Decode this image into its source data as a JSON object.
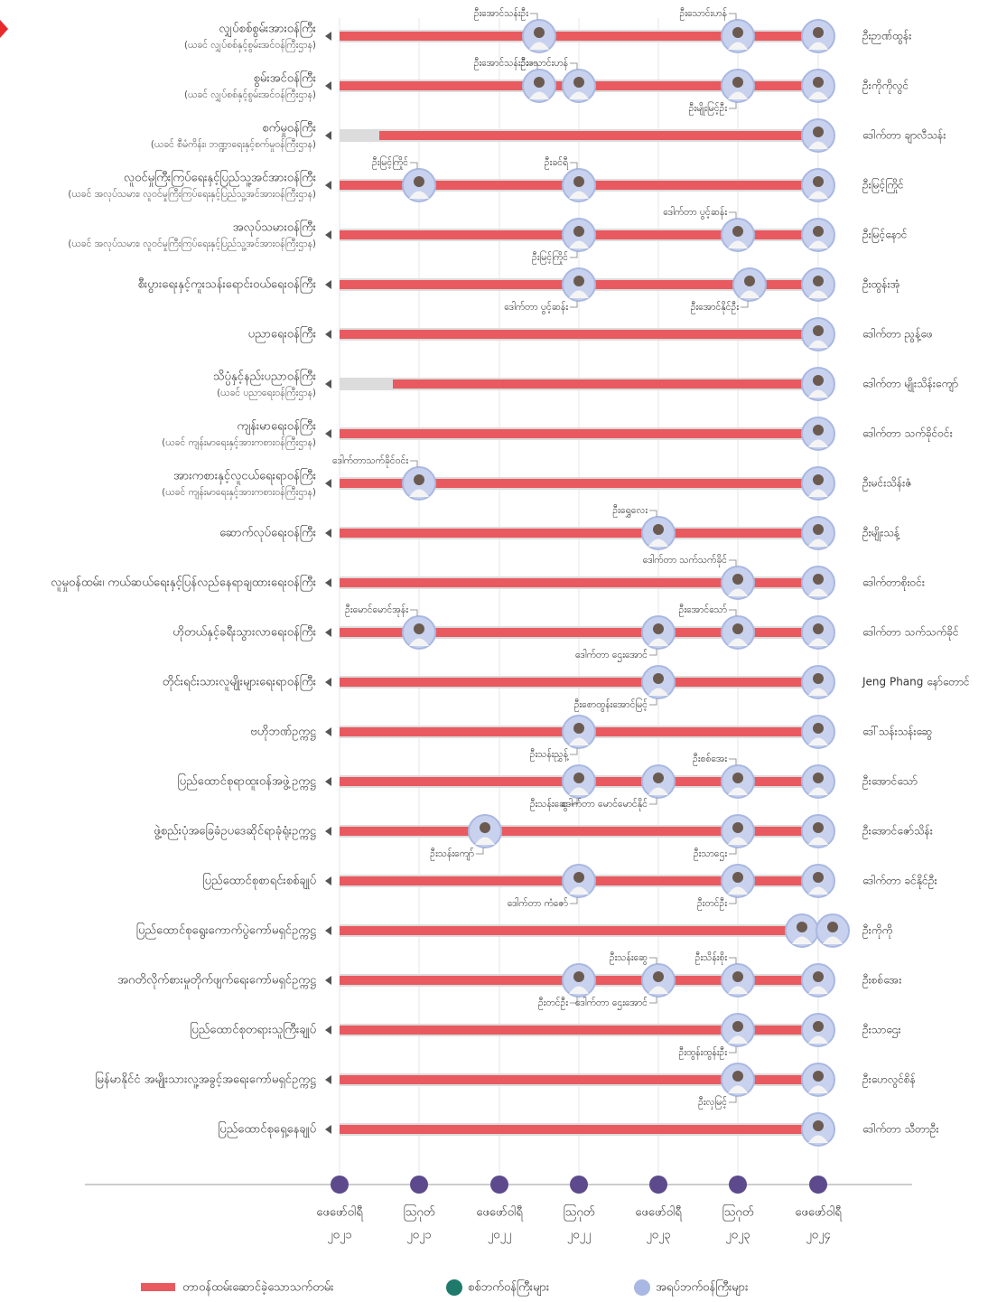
{
  "rows": [
    {
      "title": "လျှပ်စစ်စွမ်းအားဝန်ကြီး",
      "subtitle": "(ယခင် လျှပ်စစ်နှင့်စွမ်းအင်ဝန်ကြီးဌာန)",
      "current": "ဦးဉာဏ်ထွန်း",
      "people": [
        "ဦးအောင်သန်းဦး",
        "ဦးသောင်းဟန်"
      ]
    },
    {
      "title": "စွမ်းအင်ဝန်ကြီး",
      "subtitle": "(ယခင် လျှပ်စစ်နှင့်စွမ်းအင်ဝန်ကြီးဌာန)",
      "current": "ဦးကိုကိုလွင်",
      "people": [
        "ဦးအောင်သန်းဦး",
        "ဦးသောင်းဟန်",
        "ဦးမျိုးမြင့်ဦး"
      ]
    },
    {
      "title": "စက်မှုဝန်ကြီး",
      "subtitle": "(ယခင် စီမံကိန်း၊ ဘဏ္ဍာရေးနှင့်စက်မှုဝန်ကြီးဌာန)",
      "current": "ဒေါက်တာ ချာလီသန်း",
      "people": []
    },
    {
      "title": "လူဝင်မှုကြီးကြပ်ရေးနှင့်ပြည်သူ့အင်အားဝန်ကြီး",
      "subtitle": "(ယခင် အလုပ်သမား၊ လူဝင်မှုကြီးကြပ်ရေးနှင့်ပြည်သူ့အင်အားဝန်ကြီးဌာန)",
      "current": "ဦးမြင့်ကြိုင်",
      "people": [
        "ဦးမြင့်ကြိုင်",
        "ဦးခင်ရီ"
      ]
    },
    {
      "title": "အလုပ်သမားဝန်ကြီး",
      "subtitle": "(ယခင် အလုပ်သမား၊ လူဝင်မှုကြီးကြပ်ရေးနှင့်ပြည်သူ့အင်အားဝန်ကြီးဌာန)",
      "current": "ဦးမြင့်နောင်",
      "people": [
        "ဦးမြင့်ကြိုင်",
        "ဒေါက်တာ ပွင့်ဆန်း"
      ]
    },
    {
      "title": "စီးပွားရေးနှင့်ကူးသန်းရောင်းဝယ်ရေးဝန်ကြီး",
      "current": "ဦးထွန်းအုံ",
      "people": [
        "ဒေါက်တာ ပွင့်ဆန်း",
        "ဦးအောင်နိုင်ဦး"
      ]
    },
    {
      "title": "ပညာရေးဝန်ကြီး",
      "current": "ဒေါက်တာ ညွန့်ဖေ",
      "people": []
    },
    {
      "title": "သိပ္ပံနှင့်နည်းပညာဝန်ကြီး",
      "subtitle": "(ယခင် ပညာရေးဝန်ကြီးဌာန)",
      "current": "ဒေါက်တာ မျိုးသိန်းကျော်",
      "people": []
    },
    {
      "title": "ကျန်းမာရေးဝန်ကြီး",
      "subtitle": "(ယခင် ကျန်းမာရေးနှင့်အားကစားဝန်ကြီးဌာန)",
      "current": "ဒေါက်တာ သက်ခိုင်ဝင်း",
      "people": []
    },
    {
      "title": "အားကစားနှင့်လူငယ်ရေးရာဝန်ကြီး",
      "subtitle": "(ယခင် ကျန်းမာရေးနှင့်အားကစားဝန်ကြီးဌာန)",
      "current": "ဦးမင်းသိန်းဇံ",
      "people": [
        "ဒေါက်တာသက်ခိုင်ဝင်း"
      ]
    },
    {
      "title": "ဆောက်လုပ်ရေးဝန်ကြီး",
      "current": "ဦးမျိုးသန့်",
      "people": [
        "ဦးရွှေလေး"
      ]
    },
    {
      "title": "လူမှုဝန်ထမ်း၊ ကယ်ဆယ်ရေးနှင့်ပြန်လည်နေရာချထားရေးဝန်ကြီး",
      "current": "ဒေါက်တာစိုးဝင်း",
      "people": [
        "ဒေါက်တာ သက်သက်ခိုင်"
      ]
    },
    {
      "title": "ဟိုတယ်နှင့်ခရီးသွားလာရေးဝန်ကြီး",
      "current": "ဒေါက်တာ သက်သက်ခိုင်",
      "people": [
        "ဦးမောင်မောင်အုန်း",
        "ဒေါက်တာ ဌေးအောင်",
        "ဦးအောင်သော်"
      ]
    },
    {
      "title": "တိုင်းရင်းသားလူမျိုးများရေးရာဝန်ကြီး",
      "current": "Jeng Phang နော်တောင်",
      "people": [
        "ဦးစောထွန်းအောင်မြင့်"
      ]
    },
    {
      "title": "ဗဟိုဘဏ်ဥက္ကဋ္ဌ",
      "current": "ဒေါ်သန်းသန်းဆွေ",
      "people": [
        "ဦးသန်းညွှန့်"
      ]
    },
    {
      "title": "ပြည်ထောင်စုရာထူးဝန်အဖွဲ့ဥက္ကဋ္ဌ",
      "current": "ဦးအောင်သော်",
      "people": [
        "ဦးသန်းဆွေ",
        "ဒေါက်တာ မောင်မောင်နိုင်",
        "ဦးစစ်အေး"
      ]
    },
    {
      "title": "ဖွဲ့စည်းပုံအခြေခံဥပဒေဆိုင်ရာခုံရုံးဥက္ကဋ္ဌ",
      "current": "ဦးအောင်ဇော်သိန်း",
      "people": [
        "ဦးသန်းကျော်",
        "ဦးသာဌေး"
      ]
    },
    {
      "title": "ပြည်ထောင်စုစာရင်းစစ်ချုပ်",
      "current": "ဒေါက်တာ ခင်နိုင်ဦး",
      "people": [
        "ဒေါက်တာ ကံဇော်",
        "ဦးတင်ဦး"
      ]
    },
    {
      "title": "ပြည်ထောင်စုရွေးကောက်ပွဲကော်မရှင်ဥက္ကဋ္ဌ",
      "current": "ဦးကိုကို",
      "people": []
    },
    {
      "title": "အဂတိလိုက်စားမှုတိုက်ဖျက်ရေးကော်မရှင်ဥက္ကဋ္ဌ",
      "current": "ဦးစစ်အေး",
      "people": [
        "ဦးတင်ဦး",
        "ဦးသန်းဆွေ",
        "ဒေါက်တာ ဌေးအောင်",
        "ဦးသိန်းစိုး"
      ]
    },
    {
      "title": "ပြည်ထောင်စုတရားသူကြီးချုပ်",
      "current": "ဦးသာဌေး",
      "people": [
        "ဦးထွန်းထွန်းဦး"
      ]
    },
    {
      "title": "မြန်မာနိုင်ငံ အမျိုးသားလူ့အခွင့်အရေးကော်မရှင်ဥက္ကဋ္ဌ",
      "current": "ဦးဟေလွင်စိန်",
      "people": [
        "ဦးလှမြင့်"
      ]
    },
    {
      "title": "ပြည်ထောင်စုရှေ့နေချုပ်",
      "current": "ဒေါက်တာ သီတာဦး",
      "people": []
    }
  ],
  "timeline": [
    [
      "ဖေဖော်ဝါရီ",
      "၂၀၂၁"
    ],
    [
      "ဩဂုတ်",
      "၂၀၂၁"
    ],
    [
      "ဖေဖော်ဝါရီ",
      "၂၀၂၂"
    ],
    [
      "ဩဂုတ်",
      "၂၀၂၂"
    ],
    [
      "ဖေဖော်ဝါရီ",
      "၂၀၂၃"
    ],
    [
      "ဩဂုတ်",
      "၂၀၂၃"
    ],
    [
      "ဖေဖော်ဝါရီ",
      "၂၀၂၄"
    ]
  ],
  "legend": {
    "term": "တာဝန်ထမ်းဆောင်ခဲ့သောသက်တမ်း",
    "military": "စစ်ဘက်ဝန်ကြီးများ",
    "civilian": "အရပ်ဘက်ဝန်ကြီးများ"
  }
}
